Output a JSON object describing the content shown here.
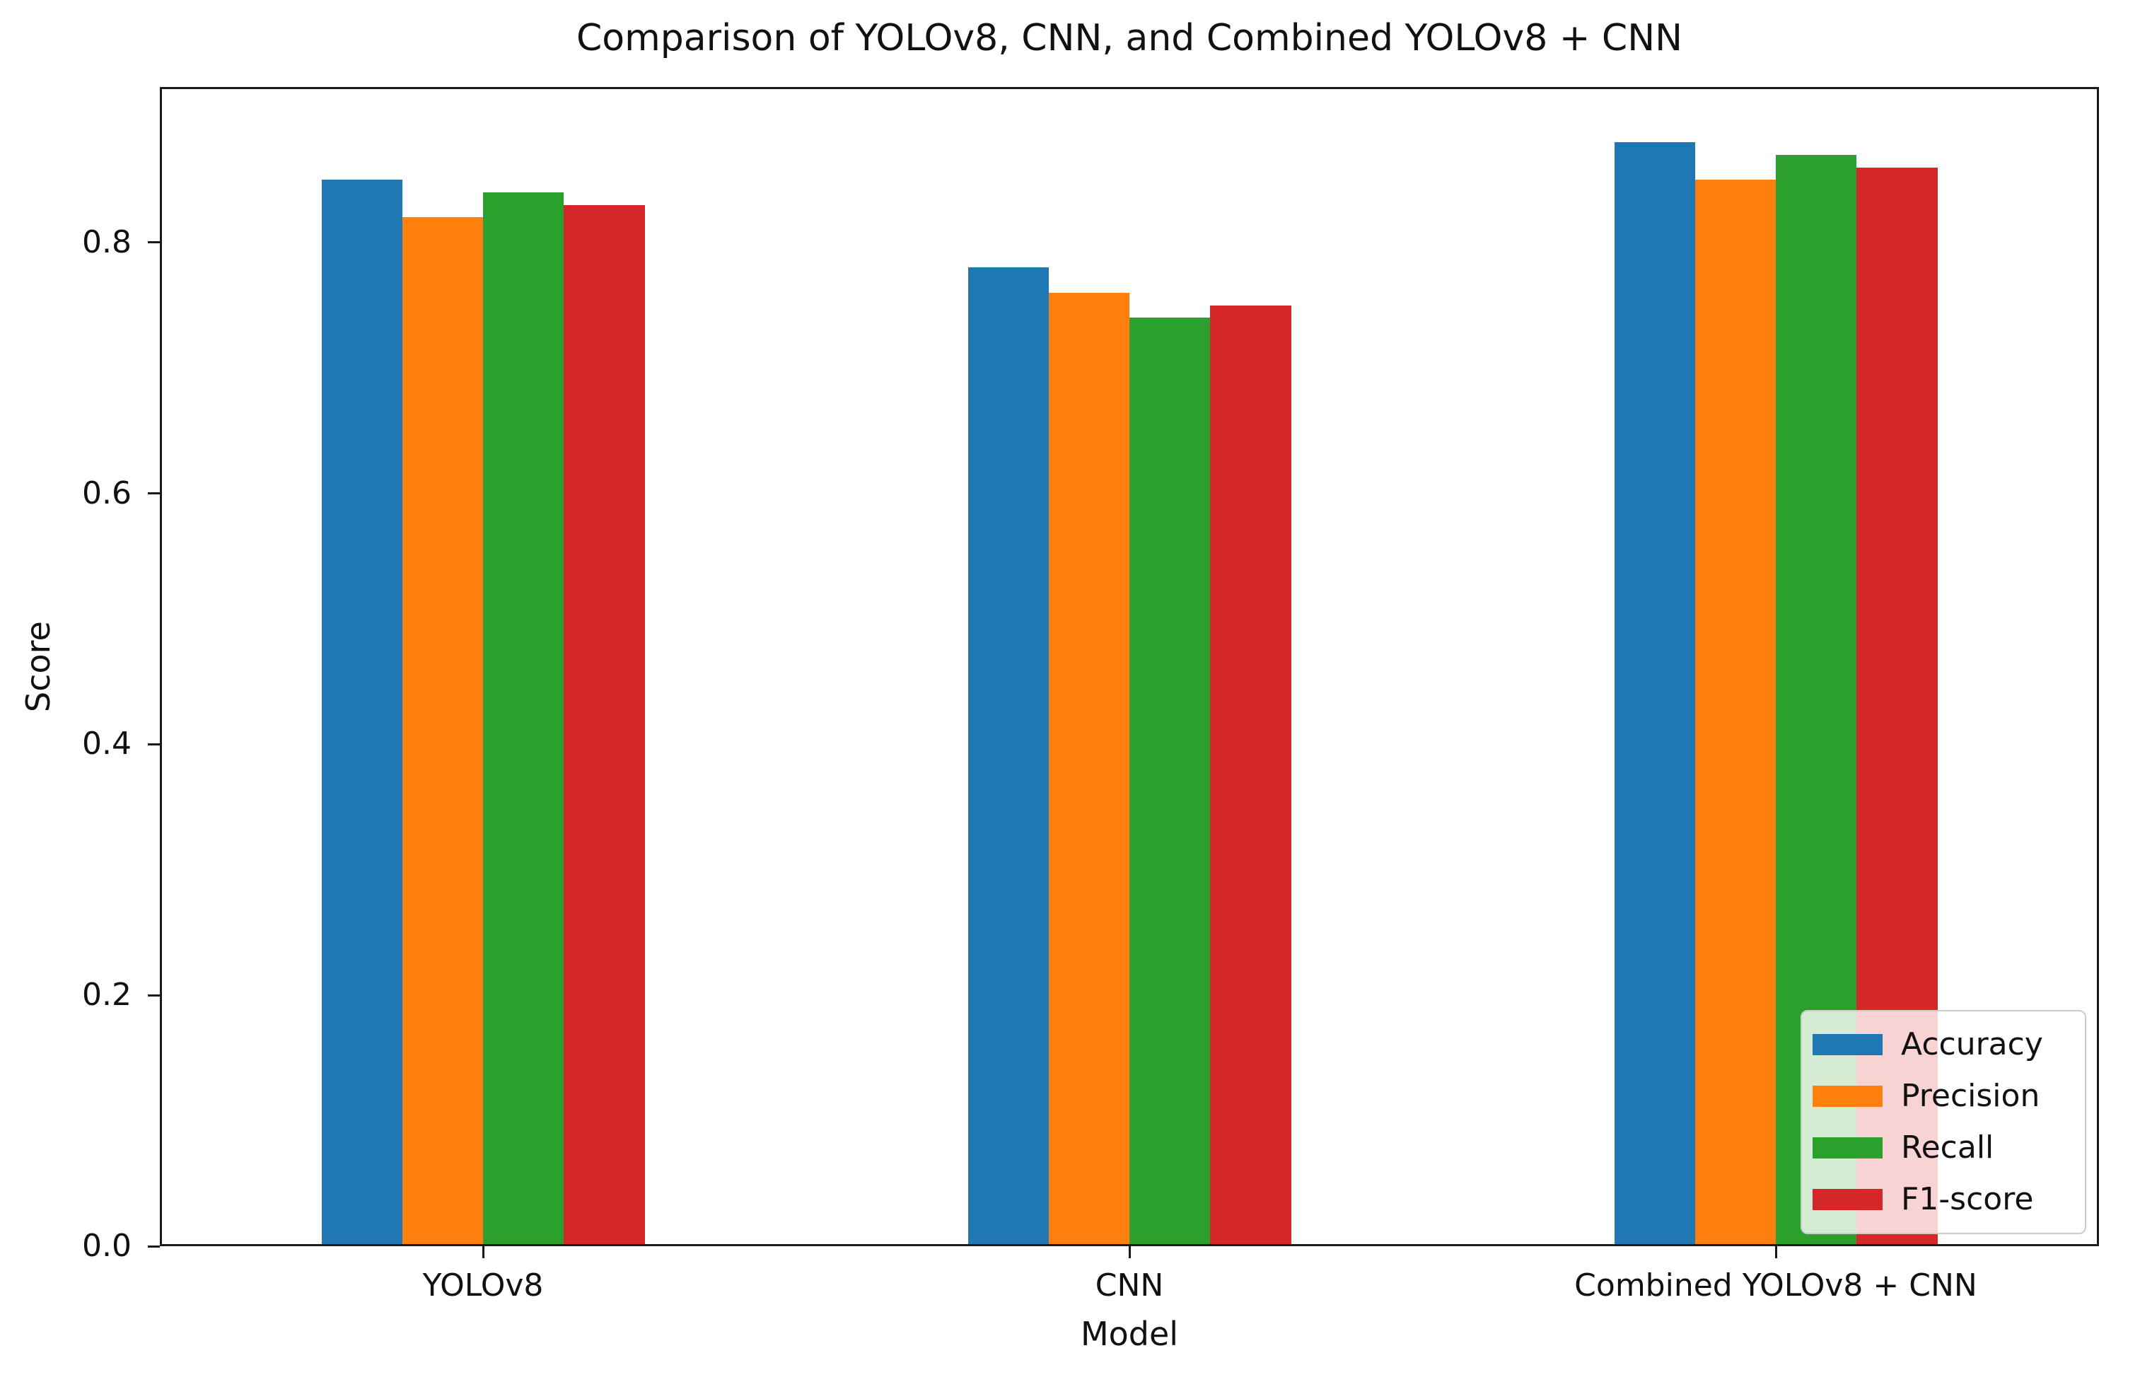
{
  "chart_data": {
    "type": "bar",
    "title": "Comparison of YOLOv8, CNN, and Combined YOLOv8 + CNN",
    "xlabel": "Model",
    "ylabel": "Score",
    "categories": [
      "YOLOv8",
      "CNN",
      "Combined YOLOv8 + CNN"
    ],
    "series": [
      {
        "name": "Accuracy",
        "color": "#1f77b4",
        "values": [
          0.85,
          0.78,
          0.88
        ]
      },
      {
        "name": "Precision",
        "color": "#ff7f0e",
        "values": [
          0.82,
          0.76,
          0.85
        ]
      },
      {
        "name": "Recall",
        "color": "#2ca02c",
        "values": [
          0.84,
          0.74,
          0.87
        ]
      },
      {
        "name": "F1-score",
        "color": "#d62728",
        "values": [
          0.83,
          0.75,
          0.86
        ]
      }
    ],
    "bar_width": 0.125,
    "ylim": [
      0,
      0.924
    ],
    "yticks": [
      "0.0",
      "0.2",
      "0.4",
      "0.6",
      "0.8"
    ],
    "grid": false,
    "legend_position": "lower right",
    "axis_color": "#1a1a1a",
    "legend_border_color": "#cccccc"
  }
}
